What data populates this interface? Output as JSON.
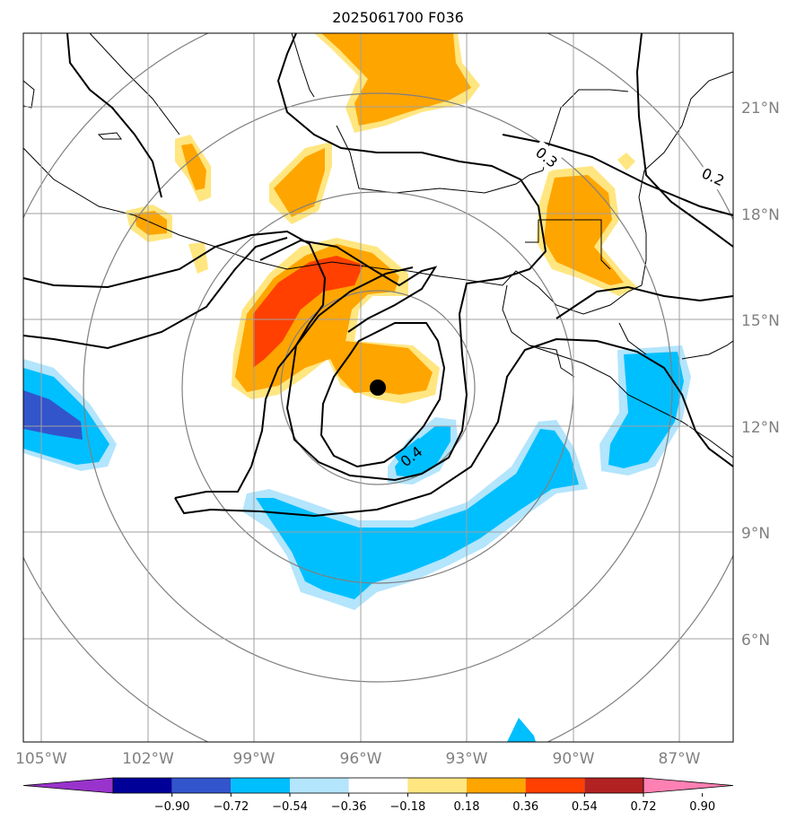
{
  "title": "2025061700 F036",
  "map": {
    "lat_labels": [
      "21°N",
      "18°N",
      "15°N",
      "12°N",
      "9°N",
      "6°N"
    ],
    "lon_labels": [
      "105°W",
      "102°W",
      "99°W",
      "96°W",
      "93°W",
      "90°W",
      "87°W"
    ],
    "contour_labels": [
      "0.3",
      "0.2",
      "0.4"
    ],
    "center_marker": {
      "lon": -95.5,
      "lat": 13.1
    },
    "range_rings": "concentric circles around center",
    "grid": true
  },
  "colorbar": {
    "ticks": [
      "−0.90",
      "−0.72",
      "−0.54",
      "−0.36",
      "−0.18",
      "0.18",
      "0.36",
      "0.54",
      "0.72",
      "0.90"
    ],
    "colors": [
      "#9933cc",
      "#000099",
      "#3355cc",
      "#00bfff",
      "#b3e5fc",
      "#ffffff",
      "#ffe680",
      "#ffa500",
      "#ff4000",
      "#b22222",
      "#ff80b3"
    ],
    "extend": "both"
  },
  "legend_colors": {
    "yellow": "#ffe680",
    "orange": "#ffa500",
    "red_orange": "#ff4000",
    "cyan": "#00bfff",
    "light_blue": "#b3e5fc",
    "blue": "#3355cc"
  }
}
